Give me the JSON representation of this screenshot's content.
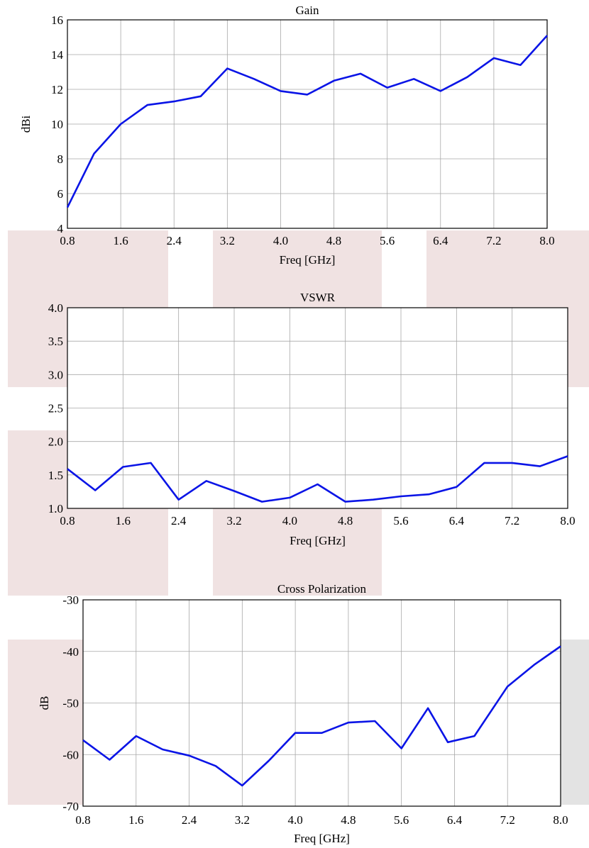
{
  "colors": {
    "series": "#0a14e6",
    "grid": "#a8a8a8",
    "axis": "#000000",
    "pink_shade": "#f0e2e2",
    "gray_shade": "#e3e3e3"
  },
  "chart_data": [
    {
      "type": "line",
      "title": "Gain",
      "xlabel": "Freq [GHz]",
      "ylabel": "dBi",
      "xlim": [
        0.8,
        8.0
      ],
      "ylim": [
        4,
        16
      ],
      "xticks": [
        "0.8",
        "1.6",
        "2.4",
        "3.2",
        "4.0",
        "4.8",
        "5.6",
        "6.4",
        "7.2",
        "8.0"
      ],
      "yticks": [
        "4",
        "6",
        "8",
        "10",
        "12",
        "14",
        "16"
      ],
      "grid": true,
      "series": [
        {
          "x": [
            0.8,
            1.2,
            1.6,
            2.0,
            2.4,
            2.8,
            3.2,
            3.6,
            4.0,
            4.4,
            4.8,
            5.2,
            5.6,
            6.0,
            6.4,
            6.8,
            7.2,
            7.6,
            8.0
          ],
          "y": [
            5.2,
            8.3,
            10.0,
            11.1,
            11.3,
            11.6,
            13.2,
            12.6,
            11.9,
            11.7,
            12.5,
            12.9,
            12.1,
            12.6,
            11.9,
            12.7,
            13.8,
            13.4,
            15.1
          ]
        }
      ]
    },
    {
      "type": "line",
      "title": "VSWR",
      "xlabel": "Freq [GHz]",
      "ylabel": "",
      "xlim": [
        0.8,
        8.0
      ],
      "ylim": [
        1.0,
        4.0
      ],
      "xticks": [
        "0.8",
        "1.6",
        "2.4",
        "3.2",
        "4.0",
        "4.8",
        "5.6",
        "6.4",
        "7.2",
        "8.0"
      ],
      "yticks": [
        "1.0",
        "1.5",
        "2.0",
        "2.5",
        "3.0",
        "3.5",
        "4.0"
      ],
      "grid": true,
      "series": [
        {
          "x": [
            0.8,
            1.2,
            1.6,
            2.0,
            2.4,
            2.8,
            3.2,
            3.6,
            4.0,
            4.4,
            4.8,
            5.2,
            5.6,
            6.0,
            6.4,
            6.8,
            7.2,
            7.6,
            8.0
          ],
          "y": [
            1.59,
            1.27,
            1.62,
            1.68,
            1.13,
            1.41,
            1.26,
            1.1,
            1.16,
            1.36,
            1.1,
            1.13,
            1.18,
            1.21,
            1.32,
            1.68,
            1.68,
            1.63,
            1.78
          ]
        }
      ]
    },
    {
      "type": "line",
      "title": "Cross Polarization",
      "xlabel": "Freq [GHz]",
      "ylabel": "dB",
      "xlim": [
        0.8,
        8.0
      ],
      "ylim": [
        -70,
        -30
      ],
      "xticks": [
        "0.8",
        "1.6",
        "2.4",
        "3.2",
        "4.0",
        "4.8",
        "5.6",
        "6.4",
        "7.2",
        "8.0"
      ],
      "yticks": [
        "-70",
        "-60",
        "-50",
        "-40",
        "-30"
      ],
      "grid": true,
      "series": [
        {
          "x": [
            0.8,
            1.2,
            1.6,
            2.0,
            2.4,
            2.8,
            3.2,
            3.6,
            4.0,
            4.4,
            4.8,
            5.2,
            5.6,
            6.0,
            6.3,
            6.7,
            7.2,
            7.6,
            8.0
          ],
          "y": [
            -57.2,
            -61.0,
            -56.4,
            -59.0,
            -60.2,
            -62.2,
            -66.0,
            -61.2,
            -55.8,
            -55.8,
            -53.8,
            -53.5,
            -58.8,
            -51.0,
            -57.6,
            -56.4,
            -46.8,
            -42.6,
            -39.0
          ]
        }
      ]
    }
  ]
}
